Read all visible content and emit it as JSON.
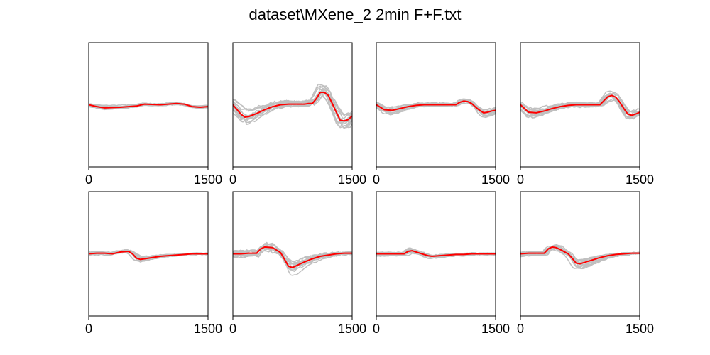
{
  "figure": {
    "title": "dataset\\MXene_2 2min F+F.txt"
  },
  "colors": {
    "trace": "#c0c0c0",
    "mean": "#ff0000",
    "axes": "#000000"
  },
  "chart_data": [
    {
      "type": "line",
      "xlim": [
        0,
        1500
      ],
      "ylim": [
        -1,
        1
      ],
      "xticks": [
        0,
        1500
      ],
      "yticks": [],
      "mean": {
        "x": [
          0,
          100,
          200,
          400,
          600,
          700,
          900,
          1100,
          1200,
          1300,
          1400,
          1500
        ],
        "y": [
          0.0,
          -0.03,
          -0.05,
          -0.04,
          -0.02,
          0.01,
          0.0,
          0.02,
          0.01,
          -0.03,
          -0.04,
          -0.03
        ]
      },
      "spread": 0.05
    },
    {
      "type": "line",
      "xlim": [
        0,
        1500
      ],
      "ylim": [
        -1,
        1
      ],
      "xticks": [
        0,
        1500
      ],
      "yticks": [],
      "mean": {
        "x": [
          0,
          100,
          150,
          200,
          300,
          400,
          500,
          600,
          700,
          900,
          950,
          1000,
          1050,
          1100,
          1150,
          1200,
          1250,
          1300,
          1350,
          1400,
          1450,
          1500
        ],
        "y": [
          0.0,
          -0.15,
          -0.2,
          -0.19,
          -0.14,
          -0.08,
          -0.03,
          0.0,
          0.01,
          0.01,
          0.02,
          0.02,
          0.1,
          0.2,
          0.2,
          0.15,
          0.02,
          -0.12,
          -0.25,
          -0.26,
          -0.24,
          -0.18
        ]
      },
      "spread": 0.16
    },
    {
      "type": "line",
      "xlim": [
        0,
        1500
      ],
      "ylim": [
        -1,
        1
      ],
      "xticks": [
        0,
        1500
      ],
      "yticks": [],
      "mean": {
        "x": [
          0,
          100,
          200,
          300,
          400,
          500,
          600,
          700,
          800,
          1000,
          1050,
          1100,
          1150,
          1200,
          1250,
          1300,
          1350,
          1400,
          1450,
          1500
        ],
        "y": [
          0.0,
          -0.08,
          -0.09,
          -0.06,
          -0.03,
          -0.01,
          0.0,
          0.0,
          0.0,
          0.0,
          0.04,
          0.06,
          0.05,
          0.02,
          -0.04,
          -0.09,
          -0.13,
          -0.12,
          -0.1,
          -0.09
        ]
      },
      "spread": 0.09
    },
    {
      "type": "line",
      "xlim": [
        0,
        1500
      ],
      "ylim": [
        -1,
        1
      ],
      "xticks": [
        0,
        1500
      ],
      "yticks": [],
      "mean": {
        "x": [
          0,
          100,
          200,
          300,
          400,
          500,
          600,
          700,
          800,
          1000,
          1100,
          1150,
          1200,
          1250,
          1300,
          1350,
          1400,
          1450,
          1500
        ],
        "y": [
          0.0,
          -0.12,
          -0.13,
          -0.1,
          -0.06,
          -0.03,
          -0.01,
          0.0,
          0.0,
          0.0,
          0.13,
          0.15,
          0.12,
          0.04,
          -0.06,
          -0.15,
          -0.17,
          -0.15,
          -0.12
        ]
      },
      "spread": 0.11
    },
    {
      "type": "line",
      "xlim": [
        0,
        1500
      ],
      "ylim": [
        -1,
        1
      ],
      "xticks": [
        0,
        1500
      ],
      "yticks": [],
      "mean": {
        "x": [
          0,
          100,
          200,
          300,
          400,
          500,
          550,
          600,
          650,
          700,
          800,
          900,
          1000,
          1100,
          1200,
          1300,
          1400,
          1500
        ],
        "y": [
          0.0,
          0.01,
          0.01,
          0.0,
          0.03,
          0.04,
          0.0,
          -0.07,
          -0.09,
          -0.08,
          -0.06,
          -0.04,
          -0.03,
          -0.02,
          -0.01,
          0.0,
          0.0,
          0.0
        ]
      },
      "spread": 0.06
    },
    {
      "type": "line",
      "xlim": [
        0,
        1500
      ],
      "ylim": [
        -1,
        1
      ],
      "xticks": [
        0,
        1500
      ],
      "yticks": [],
      "mean": {
        "x": [
          0,
          100,
          200,
          300,
          350,
          400,
          500,
          600,
          650,
          700,
          750,
          800,
          900,
          1000,
          1100,
          1200,
          1300,
          1400,
          1500
        ],
        "y": [
          0.0,
          0.0,
          0.01,
          0.01,
          0.08,
          0.11,
          0.1,
          0.02,
          -0.09,
          -0.2,
          -0.22,
          -0.19,
          -0.13,
          -0.08,
          -0.04,
          -0.02,
          0.0,
          0.01,
          0.01
        ]
      },
      "spread": 0.12
    },
    {
      "type": "line",
      "xlim": [
        0,
        1500
      ],
      "ylim": [
        -1,
        1
      ],
      "xticks": [
        0,
        1500
      ],
      "yticks": [],
      "mean": {
        "x": [
          0,
          200,
          300,
          350,
          400,
          450,
          500,
          600,
          650,
          700,
          800,
          900,
          1000,
          1100,
          1200,
          1300,
          1400,
          1500
        ],
        "y": [
          0.0,
          0.0,
          0.0,
          0.0,
          0.04,
          0.05,
          0.03,
          -0.01,
          -0.03,
          -0.04,
          -0.03,
          -0.02,
          -0.01,
          -0.01,
          0.0,
          0.0,
          0.0,
          0.0
        ]
      },
      "spread": 0.07
    },
    {
      "type": "line",
      "xlim": [
        0,
        1500
      ],
      "ylim": [
        -1,
        1
      ],
      "xticks": [
        0,
        1500
      ],
      "yticks": [],
      "mean": {
        "x": [
          0,
          100,
          200,
          300,
          350,
          400,
          450,
          500,
          600,
          650,
          700,
          750,
          800,
          900,
          1000,
          1100,
          1200,
          1300,
          1400,
          1500
        ],
        "y": [
          0.0,
          0.01,
          0.01,
          0.01,
          0.08,
          0.11,
          0.1,
          0.07,
          0.0,
          -0.07,
          -0.15,
          -0.16,
          -0.14,
          -0.1,
          -0.06,
          -0.03,
          -0.01,
          0.0,
          0.01,
          0.01
        ]
      },
      "spread": 0.09
    }
  ]
}
